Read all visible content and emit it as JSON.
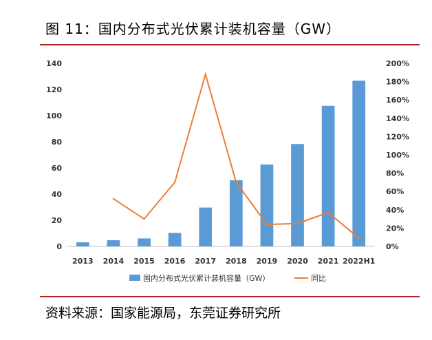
{
  "figure": {
    "title": "图 11：国内分布式光伏累计装机容量（GW）",
    "source": "资料来源：国家能源局，东莞证券研究所"
  },
  "chart_data": {
    "type": "bar",
    "categories": [
      "2013",
      "2014",
      "2015",
      "2016",
      "2017",
      "2018",
      "2019",
      "2020",
      "2021",
      "2022H1"
    ],
    "series": [
      {
        "name": "国内分布式光伏累计装机容量（GW）",
        "type": "bar",
        "axis": "left",
        "color": "#5b9bd5",
        "values": [
          3.1,
          4.7,
          6.1,
          10.3,
          29.7,
          50.6,
          62.6,
          78.3,
          107.5,
          126.7
        ]
      },
      {
        "name": "同比",
        "type": "line",
        "axis": "right",
        "color": "#ed7d31",
        "values": [
          null,
          52,
          30,
          70,
          188,
          70,
          24,
          25,
          37,
          9
        ]
      }
    ],
    "y_left": {
      "min": 0,
      "max": 140,
      "step": 20,
      "ticks": [
        "0",
        "20",
        "40",
        "60",
        "80",
        "100",
        "120",
        "140"
      ]
    },
    "y_right": {
      "min": 0,
      "max": 200,
      "step": 20,
      "ticks": [
        "0%",
        "20%",
        "40%",
        "60%",
        "80%",
        "100%",
        "120%",
        "140%",
        "160%",
        "180%",
        "200%"
      ]
    },
    "legend": {
      "position": "bottom"
    },
    "grid": false
  }
}
